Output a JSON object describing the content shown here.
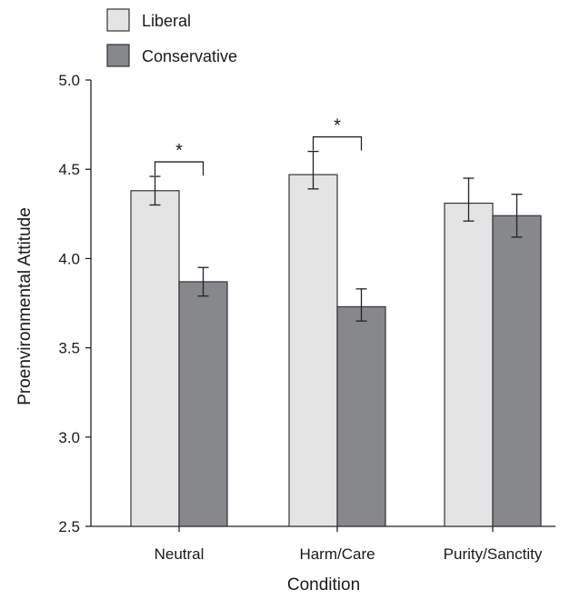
{
  "chart_data": {
    "type": "bar",
    "title": "",
    "xlabel": "Condition",
    "ylabel": "Proenvironmental Attitude",
    "ylim": [
      2.5,
      5.0
    ],
    "yticks": [
      "2.5",
      "3.0",
      "3.5",
      "4.0",
      "4.5",
      "5.0"
    ],
    "categories": [
      "Neutral",
      "Harm/Care",
      "Purity/Sanctity"
    ],
    "series": [
      {
        "name": "Liberal",
        "color": "#e4e4e4",
        "values": [
          4.38,
          4.47,
          4.31
        ],
        "error_low": [
          4.3,
          4.39,
          4.21
        ],
        "error_high": [
          4.46,
          4.6,
          4.45
        ]
      },
      {
        "name": "Conservative",
        "color": "#87888c",
        "values": [
          3.87,
          3.73,
          4.24
        ],
        "error_low": [
          3.79,
          3.65,
          4.12
        ],
        "error_high": [
          3.95,
          3.83,
          4.36
        ]
      }
    ],
    "significance": [
      {
        "category_index": 0,
        "label": "*"
      },
      {
        "category_index": 1,
        "label": "*"
      }
    ],
    "grid": false,
    "legend_position": "top-left"
  }
}
